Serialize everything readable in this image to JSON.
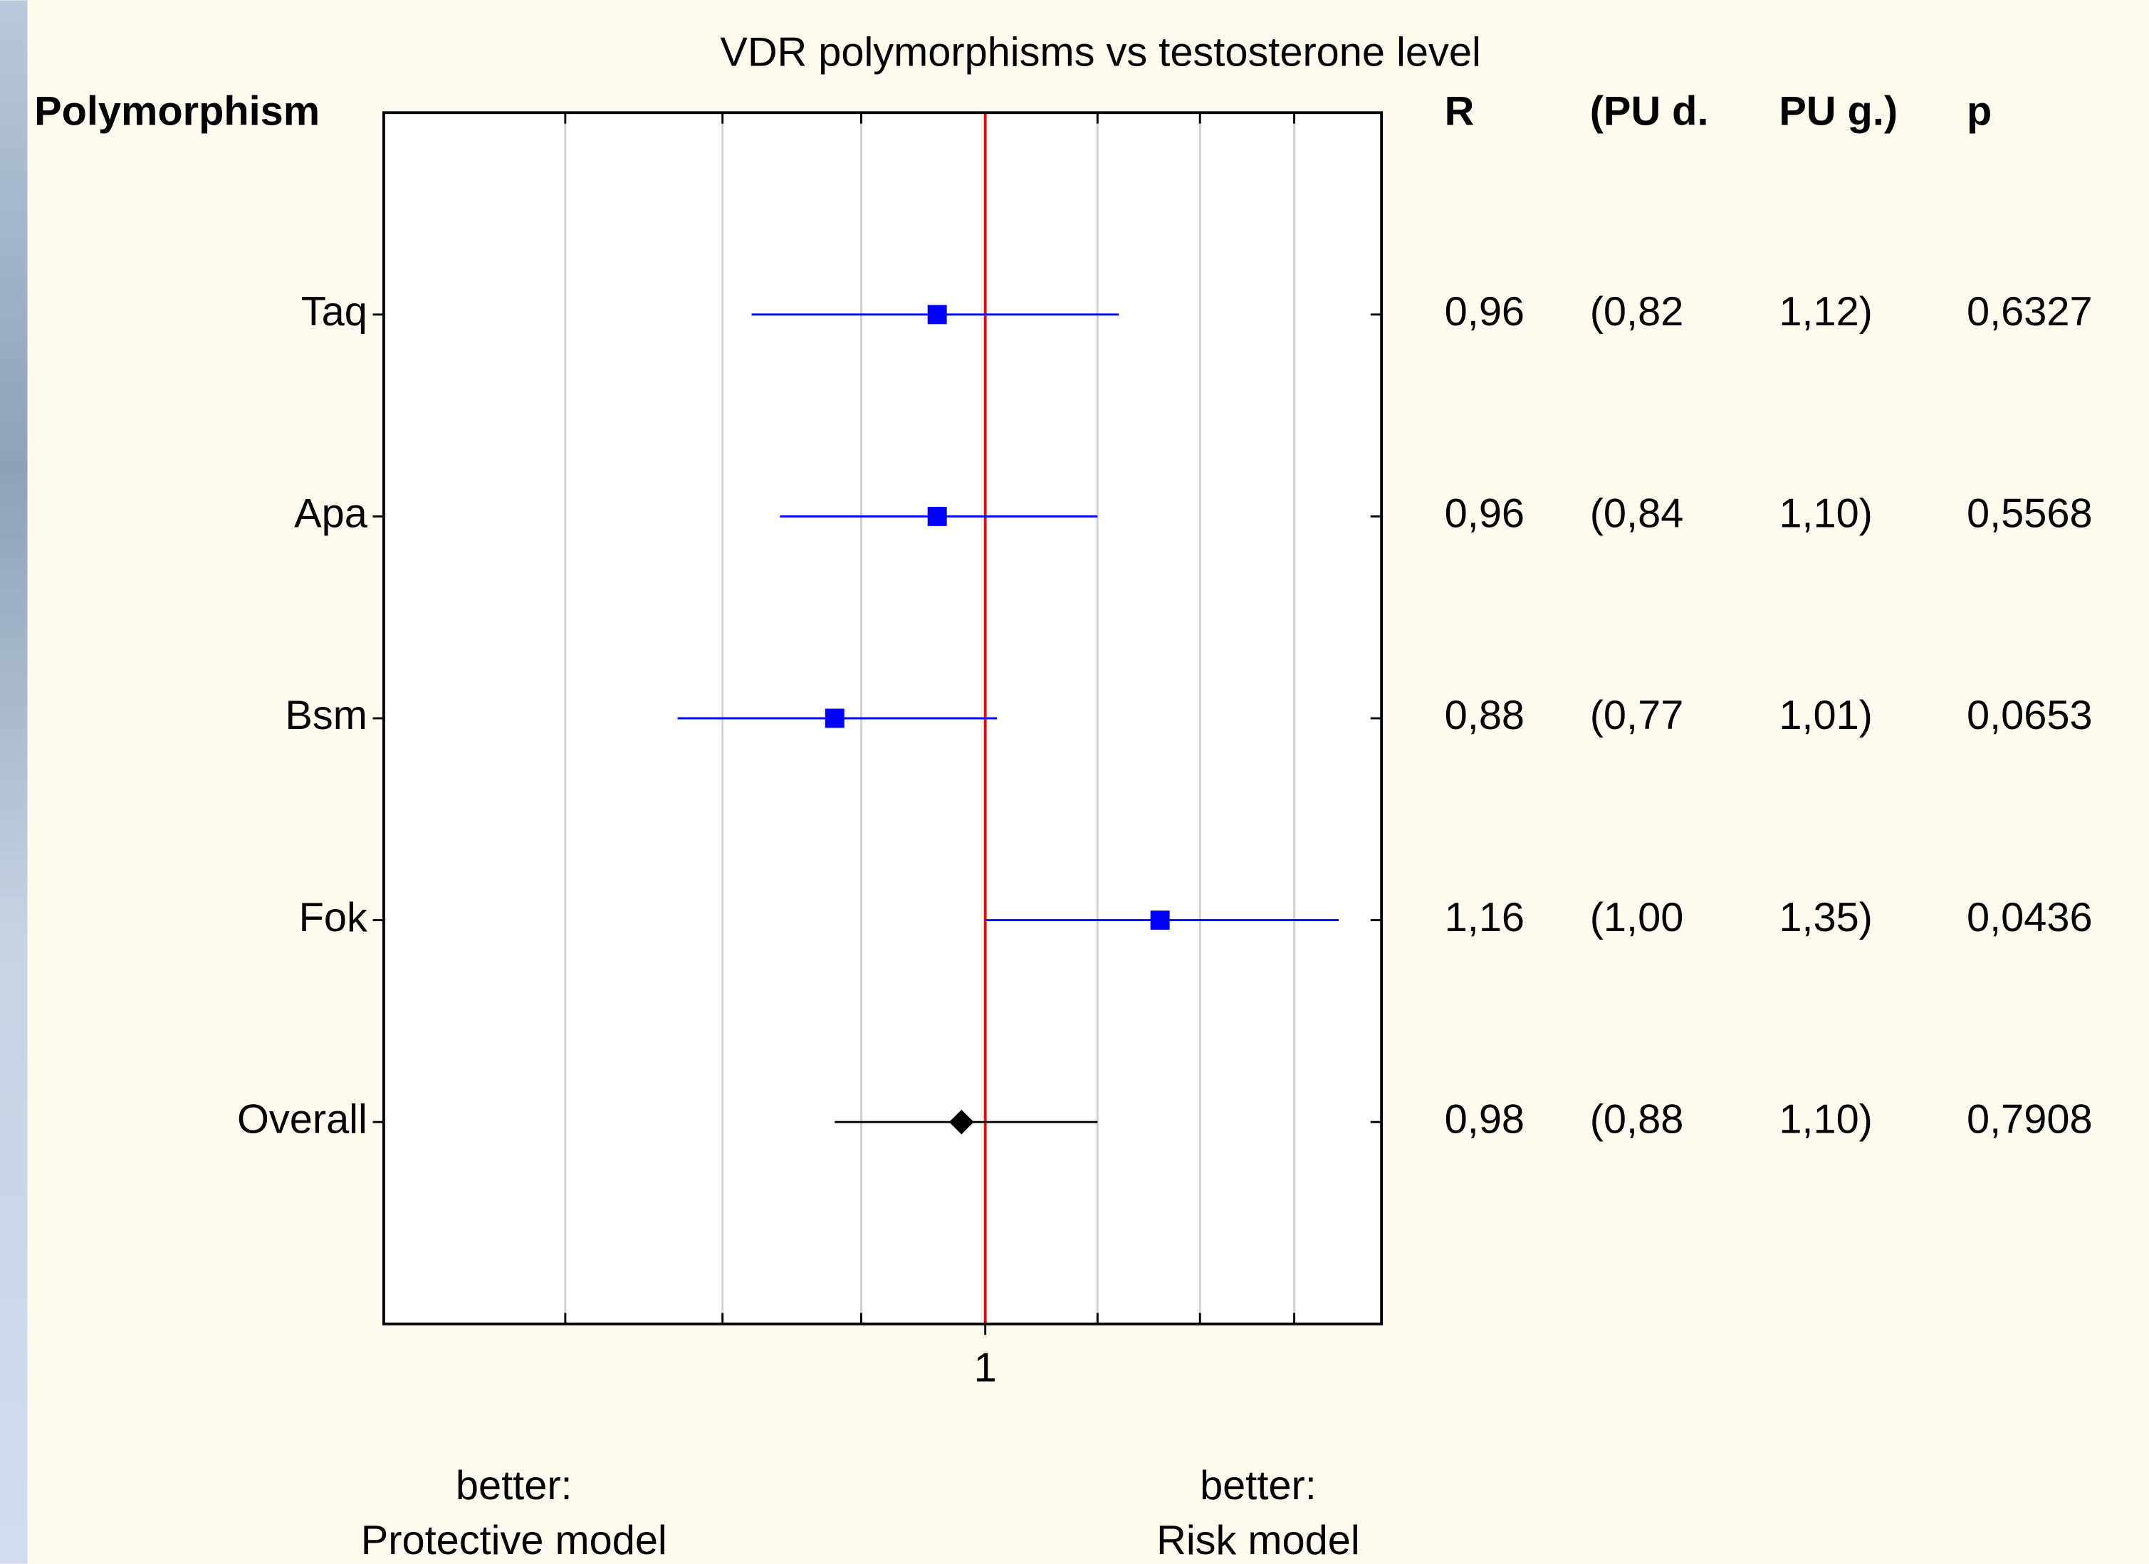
{
  "chart_data": {
    "type": "forest",
    "title": "VDR polymorphisms vs testosterone level",
    "row_header": "Polymorphism",
    "columns": [
      "R",
      "(PU d.",
      "PU g.)",
      "p"
    ],
    "categories": [
      "Taq",
      "Apa",
      "Bsm",
      "Fok",
      "Overall"
    ],
    "values": [
      0.96,
      0.96,
      0.88,
      1.16,
      0.98
    ],
    "value_labels": [
      "0,96",
      "0,96",
      "0,88",
      "1,16",
      "0,98"
    ],
    "ci_low": [
      0.82,
      0.84,
      0.77,
      1.0,
      0.88
    ],
    "ci_low_labels": [
      "(0,82",
      "(0,84",
      "(0,77",
      "(1,00",
      "(0,88"
    ],
    "ci_high": [
      1.12,
      1.1,
      1.01,
      1.35,
      1.1
    ],
    "ci_high_labels": [
      "1,12)",
      "1,10)",
      "1,01)",
      "1,35)",
      "1,10)"
    ],
    "p": [
      0.6327,
      0.5568,
      0.0653,
      0.0436,
      0.7908
    ],
    "p_labels": [
      "0,6327",
      "0,5568",
      "0,0653",
      "0,0436",
      "0,7908"
    ],
    "markers": [
      "square",
      "square",
      "square",
      "square",
      "diamond"
    ],
    "marker_colors": [
      "#0000ff",
      "#0000ff",
      "#0000ff",
      "#0000ff",
      "#000000"
    ],
    "reference_line": 1,
    "reference_color": "#ff0000",
    "xscale": "log",
    "xlim": [
      0.6,
      1.4
    ],
    "xticks": [
      1
    ],
    "xgrid": [
      0.7,
      0.8,
      0.9,
      1.1,
      1.2,
      1.3
    ],
    "grid": true,
    "annotations": [
      [
        "better:",
        "Protective model"
      ],
      [
        "better:",
        "Risk model"
      ]
    ]
  }
}
